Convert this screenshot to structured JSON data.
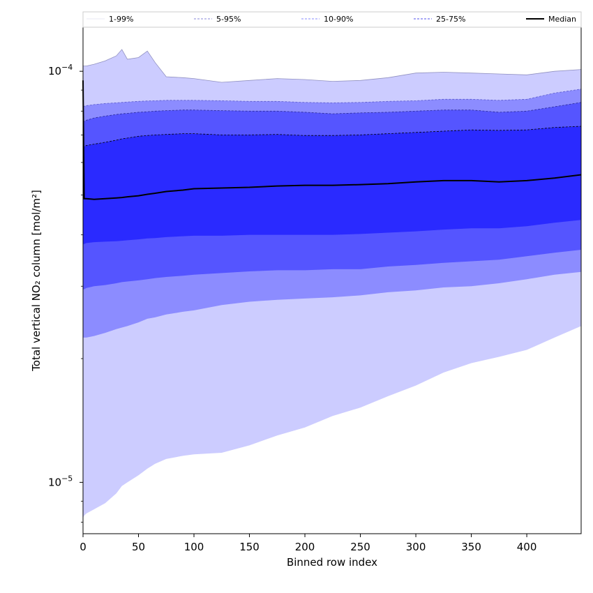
{
  "chart_data": {
    "type": "area",
    "xlabel": "Binned row index",
    "ylabel": "Total vertical NO₂ column [mol/m²]",
    "xlim": [
      0,
      449
    ],
    "ylim": [
      7.5e-06,
      0.000128
    ],
    "yscale": "log",
    "x_ticks": [
      0,
      50,
      100,
      150,
      200,
      250,
      300,
      350,
      400
    ],
    "y_major_ticks": [
      {
        "value": 1e-05,
        "base": "10",
        "exp": "−5"
      },
      {
        "value": 0.0001,
        "base": "10",
        "exp": "−4"
      }
    ],
    "legend": {
      "placement": "top",
      "entries": [
        {
          "label": "1-99%",
          "color": "#e8e8f6"
        },
        {
          "label": "5-95%",
          "color": "#8a8ad8"
        },
        {
          "label": "10-90%",
          "color": "#8a8cff"
        },
        {
          "label": "25-75%",
          "color": "#5050ee"
        },
        {
          "label": "Median",
          "color": "#000000"
        }
      ]
    },
    "x": [
      0,
      1,
      3,
      10,
      20,
      30,
      35,
      40,
      50,
      58,
      65,
      75,
      90,
      100,
      125,
      150,
      175,
      200,
      225,
      250,
      275,
      300,
      325,
      350,
      375,
      400,
      425,
      449
    ],
    "series": [
      {
        "name": "1-99%",
        "color": "#ccccff",
        "lower": [
          8.2e-06,
          8.3e-06,
          8.4e-06,
          8.6e-06,
          8.9e-06,
          9.4e-06,
          9.8e-06,
          1e-05,
          1.04e-05,
          1.08e-05,
          1.11e-05,
          1.14e-05,
          1.16e-05,
          1.17e-05,
          1.18e-05,
          1.23e-05,
          1.3e-05,
          1.36e-05,
          1.45e-05,
          1.52e-05,
          1.62e-05,
          1.72e-05,
          1.85e-05,
          1.95e-05,
          2.02e-05,
          2.1e-05,
          2.25e-05,
          2.4e-05
        ],
        "upper": [
          0.000103,
          0.000103,
          0.000103,
          0.000104,
          0.000106,
          0.000109,
          0.000113,
          0.000107,
          0.000108,
          0.000112,
          0.000105,
          9.7e-05,
          9.65e-05,
          9.6e-05,
          9.4e-05,
          9.5e-05,
          9.6e-05,
          9.55e-05,
          9.45e-05,
          9.5e-05,
          9.65e-05,
          9.9e-05,
          9.95e-05,
          9.9e-05,
          9.85e-05,
          9.8e-05,
          0.0001,
          0.000101
        ]
      },
      {
        "name": "5-95%",
        "color": "#8c8cff",
        "lower": [
          2.25e-05,
          2.25e-05,
          2.25e-05,
          2.27e-05,
          2.31e-05,
          2.36e-05,
          2.38e-05,
          2.4e-05,
          2.45e-05,
          2.5e-05,
          2.52e-05,
          2.56e-05,
          2.6e-05,
          2.62e-05,
          2.7e-05,
          2.75e-05,
          2.78e-05,
          2.8e-05,
          2.82e-05,
          2.85e-05,
          2.9e-05,
          2.93e-05,
          2.98e-05,
          3e-05,
          3.05e-05,
          3.12e-05,
          3.2e-05,
          3.25e-05
        ],
        "upper": [
          8.2e-05,
          8.22e-05,
          8.25e-05,
          8.3e-05,
          8.35e-05,
          8.38e-05,
          8.4e-05,
          8.42e-05,
          8.45e-05,
          8.47e-05,
          8.48e-05,
          8.5e-05,
          8.5e-05,
          8.5e-05,
          8.48e-05,
          8.45e-05,
          8.45e-05,
          8.4e-05,
          8.38e-05,
          8.4e-05,
          8.45e-05,
          8.48e-05,
          8.55e-05,
          8.55e-05,
          8.5e-05,
          8.55e-05,
          8.85e-05,
          9.05e-05
        ]
      },
      {
        "name": "10-90%",
        "color": "#5555ff",
        "lower": [
          2.95e-05,
          2.95e-05,
          2.97e-05,
          3e-05,
          3.02e-05,
          3.05e-05,
          3.07e-05,
          3.08e-05,
          3.1e-05,
          3.12e-05,
          3.14e-05,
          3.16e-05,
          3.18e-05,
          3.2e-05,
          3.23e-05,
          3.26e-05,
          3.28e-05,
          3.28e-05,
          3.3e-05,
          3.3e-05,
          3.35e-05,
          3.38e-05,
          3.42e-05,
          3.45e-05,
          3.48e-05,
          3.55e-05,
          3.62e-05,
          3.68e-05
        ],
        "upper": [
          7.5e-05,
          7.55e-05,
          7.6e-05,
          7.7e-05,
          7.78e-05,
          7.85e-05,
          7.88e-05,
          7.9e-05,
          7.95e-05,
          7.97e-05,
          8e-05,
          8.02e-05,
          8.05e-05,
          8.05e-05,
          8.02e-05,
          8e-05,
          8e-05,
          7.95e-05,
          7.88e-05,
          7.92e-05,
          7.95e-05,
          8e-05,
          8.05e-05,
          8.05e-05,
          7.95e-05,
          8e-05,
          8.2e-05,
          8.4e-05
        ]
      },
      {
        "name": "25-75%",
        "color": "#2a2aff",
        "lower": [
          3.8e-05,
          3.8e-05,
          3.82e-05,
          3.84e-05,
          3.85e-05,
          3.86e-05,
          3.87e-05,
          3.88e-05,
          3.9e-05,
          3.92e-05,
          3.93e-05,
          3.95e-05,
          3.97e-05,
          3.98e-05,
          3.98e-05,
          4e-05,
          4e-05,
          4e-05,
          4e-05,
          4.02e-05,
          4.05e-05,
          4.08e-05,
          4.12e-05,
          4.15e-05,
          4.15e-05,
          4.2e-05,
          4.28e-05,
          4.35e-05
        ],
        "upper": [
          6.5e-05,
          6.55e-05,
          6.6e-05,
          6.65e-05,
          6.72e-05,
          6.8e-05,
          6.85e-05,
          6.88e-05,
          6.95e-05,
          6.98e-05,
          7e-05,
          7.02e-05,
          7.05e-05,
          7.05e-05,
          7e-05,
          7e-05,
          7.02e-05,
          6.98e-05,
          6.98e-05,
          7e-05,
          7.05e-05,
          7.1e-05,
          7.15e-05,
          7.2e-05,
          7.18e-05,
          7.2e-05,
          7.3e-05,
          7.35e-05
        ]
      },
      {
        "name": "Median",
        "color": "#000000",
        "values": [
          9.5e-05,
          4.9e-05,
          4.9e-05,
          4.88e-05,
          4.9e-05,
          4.92e-05,
          4.93e-05,
          4.95e-05,
          4.98e-05,
          5.02e-05,
          5.05e-05,
          5.1e-05,
          5.14e-05,
          5.18e-05,
          5.2e-05,
          5.22e-05,
          5.26e-05,
          5.28e-05,
          5.28e-05,
          5.3e-05,
          5.33e-05,
          5.38e-05,
          5.42e-05,
          5.42e-05,
          5.38e-05,
          5.42e-05,
          5.5e-05,
          5.6e-05
        ]
      }
    ]
  }
}
